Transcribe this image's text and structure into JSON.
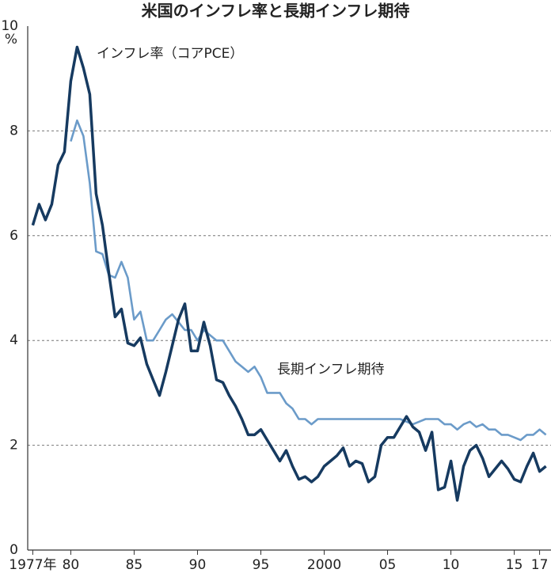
{
  "chart_data": {
    "type": "line",
    "title": "米国のインフレ率と長期インフレ期待",
    "y_unit": "%",
    "x": [
      1977.0,
      1977.5,
      1978.0,
      1978.5,
      1979.0,
      1979.5,
      1980.0,
      1980.5,
      1981.0,
      1981.5,
      1982.0,
      1982.5,
      1983.0,
      1983.5,
      1984.0,
      1984.5,
      1985.0,
      1985.5,
      1986.0,
      1986.5,
      1987.0,
      1987.5,
      1988.0,
      1988.5,
      1989.0,
      1989.5,
      1990.0,
      1990.5,
      1991.0,
      1991.5,
      1992.0,
      1992.5,
      1993.0,
      1993.5,
      1994.0,
      1994.5,
      1995.0,
      1995.5,
      1996.0,
      1996.5,
      1997.0,
      1997.5,
      1998.0,
      1998.5,
      1999.0,
      1999.5,
      2000.0,
      2000.5,
      2001.0,
      2001.5,
      2002.0,
      2002.5,
      2003.0,
      2003.5,
      2004.0,
      2004.5,
      2005.0,
      2005.5,
      2006.0,
      2006.5,
      2007.0,
      2007.5,
      2008.0,
      2008.5,
      2009.0,
      2009.5,
      2010.0,
      2010.5,
      2011.0,
      2011.5,
      2012.0,
      2012.5,
      2013.0,
      2013.5,
      2014.0,
      2014.5,
      2015.0,
      2015.5,
      2016.0,
      2016.5,
      2017.0,
      2017.5
    ],
    "series": [
      {
        "name": "インフレ率（コアPCE）",
        "color": "#163a60",
        "width": 3.5,
        "values": [
          6.2,
          6.6,
          6.3,
          6.6,
          7.35,
          7.6,
          8.95,
          9.6,
          9.2,
          8.7,
          6.8,
          6.2,
          5.3,
          4.45,
          4.6,
          3.95,
          3.9,
          4.05,
          3.55,
          3.25,
          2.95,
          3.4,
          3.9,
          4.4,
          4.7,
          3.8,
          3.8,
          4.35,
          3.9,
          3.25,
          3.2,
          2.95,
          2.75,
          2.5,
          2.2,
          2.2,
          2.3,
          2.1,
          1.9,
          1.7,
          1.9,
          1.6,
          1.35,
          1.4,
          1.3,
          1.4,
          1.6,
          1.7,
          1.8,
          1.95,
          1.6,
          1.7,
          1.65,
          1.3,
          1.4,
          2.0,
          2.15,
          2.15,
          2.35,
          2.55,
          2.35,
          2.25,
          1.9,
          2.25,
          1.15,
          1.2,
          1.7,
          0.95,
          1.6,
          1.9,
          2.0,
          1.75,
          1.4,
          1.55,
          1.7,
          1.55,
          1.35,
          1.3,
          1.6,
          1.85,
          1.5,
          1.6
        ]
      },
      {
        "name": "長期インフレ期待",
        "color": "#6b9bc9",
        "width": 2.6,
        "values": [
          null,
          null,
          null,
          null,
          null,
          null,
          7.8,
          8.2,
          7.9,
          7.0,
          5.7,
          5.65,
          5.25,
          5.2,
          5.5,
          5.2,
          4.4,
          4.55,
          4.0,
          4.0,
          4.2,
          4.4,
          4.5,
          4.35,
          4.2,
          4.2,
          4.0,
          4.2,
          4.1,
          4.0,
          4.0,
          3.8,
          3.6,
          3.5,
          3.4,
          3.5,
          3.3,
          3.0,
          3.0,
          3.0,
          2.8,
          2.7,
          2.5,
          2.5,
          2.4,
          2.5,
          2.5,
          2.5,
          2.5,
          2.5,
          2.5,
          2.5,
          2.5,
          2.5,
          2.5,
          2.5,
          2.5,
          2.5,
          2.5,
          2.45,
          2.4,
          2.45,
          2.5,
          2.5,
          2.5,
          2.4,
          2.4,
          2.3,
          2.4,
          2.45,
          2.35,
          2.4,
          2.3,
          2.3,
          2.2,
          2.2,
          2.15,
          2.1,
          2.2,
          2.2,
          2.3,
          2.2
        ]
      }
    ],
    "xlim": [
      1976.6,
      2017.9
    ],
    "xticks": [
      {
        "value": 1977,
        "label": "1977年"
      },
      {
        "value": 1980,
        "label": "80"
      },
      {
        "value": 1985,
        "label": "85"
      },
      {
        "value": 1990,
        "label": "90"
      },
      {
        "value": 1995,
        "label": "95"
      },
      2000,
      {
        "value": 2005,
        "label": "05"
      },
      {
        "value": 2010,
        "label": "10"
      },
      {
        "value": 2015,
        "label": "15"
      },
      {
        "value": 2017,
        "label": "17"
      }
    ],
    "ylim": [
      0,
      10
    ],
    "yticks": [
      0,
      2,
      4,
      6,
      8,
      10
    ],
    "grid": true
  }
}
